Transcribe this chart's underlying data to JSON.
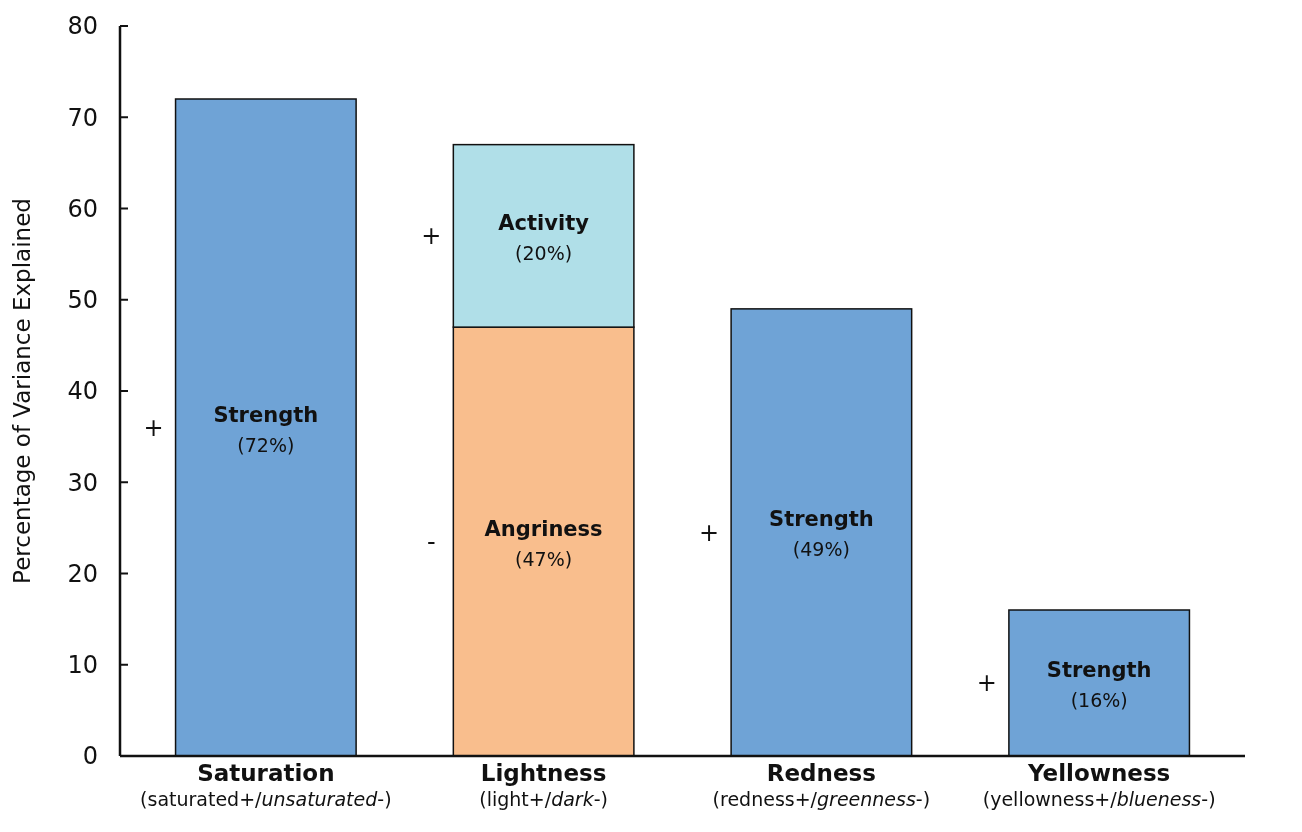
{
  "chart_data": {
    "type": "bar",
    "stacked": true,
    "ylabel": "Percentage of Variance Explained",
    "categories": [
      "Saturation\n(saturated+/unsaturated-)",
      "Lightness\n(light+/dark-)",
      "Redness\n(redness+/greenness-)",
      "Yellowness\n(yellowness+/blueness-)"
    ],
    "series": [
      {
        "name": "Strength",
        "color": "#6fa3d6",
        "values": [
          72,
          null,
          49,
          16
        ],
        "value_labels": [
          "(72%)",
          null,
          "(49%)",
          "(16%)"
        ]
      },
      {
        "name": "Angriness",
        "color": "#f9be8d",
        "values": [
          null,
          47,
          null,
          null
        ],
        "value_labels": [
          null,
          "(47%)",
          null,
          null
        ]
      },
      {
        "name": "Activity",
        "color": "#b0dfe8",
        "values": [
          null,
          20,
          null,
          null
        ],
        "value_labels": [
          null,
          "(20%)",
          null,
          null
        ]
      }
    ],
    "ylim": [
      0,
      80
    ],
    "yticks": [
      0,
      10,
      20,
      30,
      40,
      50,
      60,
      70,
      80
    ],
    "grid": false,
    "annotations": [
      "+",
      "+",
      "+",
      "-",
      "+"
    ]
  }
}
